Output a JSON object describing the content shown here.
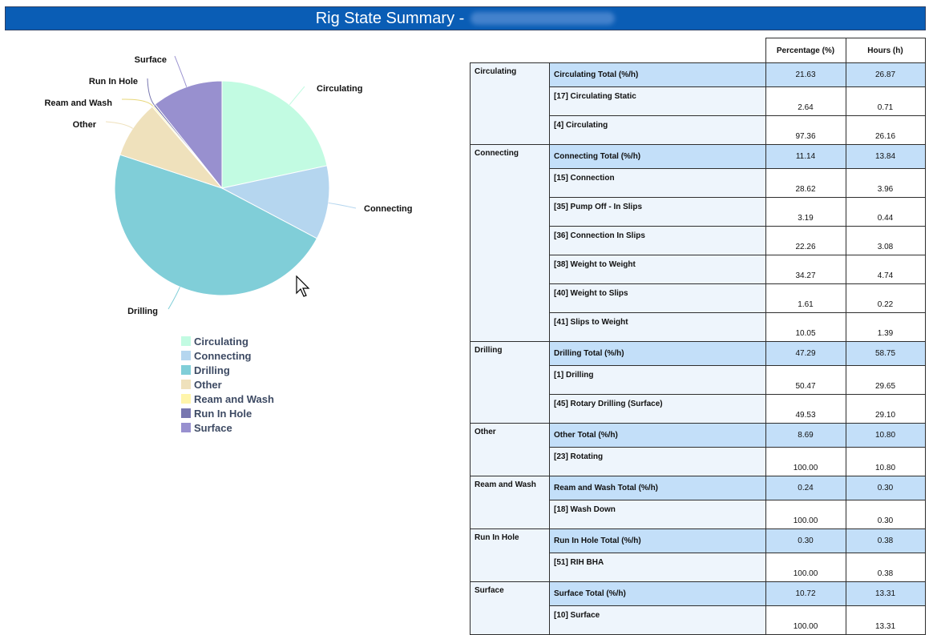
{
  "header": {
    "title": "Rig State Summary -"
  },
  "chart_data": {
    "type": "pie",
    "unit": "%",
    "slices": [
      {
        "name": "Circulating",
        "value": 21.63,
        "color": "#c2fbe2"
      },
      {
        "name": "Connecting",
        "value": 11.14,
        "color": "#b5d6ef"
      },
      {
        "name": "Drilling",
        "value": 47.29,
        "color": "#80ced8"
      },
      {
        "name": "Other",
        "value": 8.69,
        "color": "#efe1bc"
      },
      {
        "name": "Ream and Wash",
        "value": 0.24,
        "color": "#fff5ab"
      },
      {
        "name": "Run In Hole",
        "value": 0.3,
        "color": "#7877b0"
      },
      {
        "name": "Surface",
        "value": 10.72,
        "color": "#9890cf"
      }
    ],
    "legend": [
      "Circulating",
      "Connecting",
      "Drilling",
      "Other",
      "Ream and Wash",
      "Run In Hole",
      "Surface"
    ],
    "legend_position": "bottom"
  },
  "table": {
    "headers": [
      "Percentage (%)",
      "Hours (h)"
    ],
    "groups": [
      {
        "name": "Circulating",
        "rows": [
          {
            "label": "Circulating Total (%/h)",
            "pct": "21.63",
            "hours": "26.87",
            "total": true
          },
          {
            "label": "[17] Circulating Static",
            "pct": "2.64",
            "hours": "0.71",
            "total": false
          },
          {
            "label": "[4] Circulating",
            "pct": "97.36",
            "hours": "26.16",
            "total": false
          }
        ]
      },
      {
        "name": "Connecting",
        "rows": [
          {
            "label": "Connecting Total (%/h)",
            "pct": "11.14",
            "hours": "13.84",
            "total": true
          },
          {
            "label": "[15] Connection",
            "pct": "28.62",
            "hours": "3.96",
            "total": false
          },
          {
            "label": "[35] Pump Off - In Slips",
            "pct": "3.19",
            "hours": "0.44",
            "total": false
          },
          {
            "label": "[36] Connection In Slips",
            "pct": "22.26",
            "hours": "3.08",
            "total": false
          },
          {
            "label": "[38] Weight to Weight",
            "pct": "34.27",
            "hours": "4.74",
            "total": false
          },
          {
            "label": "[40] Weight to Slips",
            "pct": "1.61",
            "hours": "0.22",
            "total": false
          },
          {
            "label": "[41] Slips to Weight",
            "pct": "10.05",
            "hours": "1.39",
            "total": false
          }
        ]
      },
      {
        "name": "Drilling",
        "rows": [
          {
            "label": "Drilling Total (%/h)",
            "pct": "47.29",
            "hours": "58.75",
            "total": true
          },
          {
            "label": "[1] Drilling",
            "pct": "50.47",
            "hours": "29.65",
            "total": false
          },
          {
            "label": "[45] Rotary Drilling (Surface)",
            "pct": "49.53",
            "hours": "29.10",
            "total": false
          }
        ]
      },
      {
        "name": "Other",
        "rows": [
          {
            "label": "Other Total (%/h)",
            "pct": "8.69",
            "hours": "10.80",
            "total": true
          },
          {
            "label": "[23] Rotating",
            "pct": "100.00",
            "hours": "10.80",
            "total": false
          }
        ]
      },
      {
        "name": "Ream and Wash",
        "rows": [
          {
            "label": "Ream and Wash Total (%/h)",
            "pct": "0.24",
            "hours": "0.30",
            "total": true
          },
          {
            "label": "[18] Wash Down",
            "pct": "100.00",
            "hours": "0.30",
            "total": false
          }
        ]
      },
      {
        "name": "Run In Hole",
        "rows": [
          {
            "label": "Run In Hole Total (%/h)",
            "pct": "0.30",
            "hours": "0.38",
            "total": true
          },
          {
            "label": "[51] RIH BHA",
            "pct": "100.00",
            "hours": "0.38",
            "total": false
          }
        ]
      },
      {
        "name": "Surface",
        "rows": [
          {
            "label": "Surface Total (%/h)",
            "pct": "10.72",
            "hours": "13.31",
            "total": true
          },
          {
            "label": "[10] Surface",
            "pct": "100.00",
            "hours": "13.31",
            "total": false
          }
        ]
      }
    ]
  }
}
